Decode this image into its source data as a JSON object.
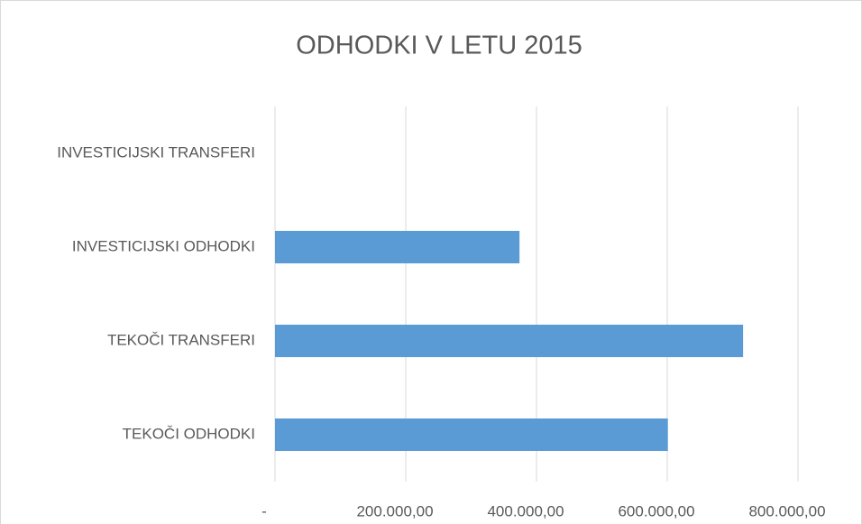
{
  "chart_data": {
    "type": "bar",
    "orientation": "horizontal",
    "title": "ODHODKI V LETU 2015",
    "categories": [
      "TEKOČI ODHODKI",
      "TEKOČI TRANSFERI",
      "INVESTICIJSKI ODHODKI",
      "INVESTICIJSKI TRANSFERI"
    ],
    "values": [
      601000,
      716000,
      374000,
      0
    ],
    "color": "#5b9bd5",
    "xlim": [
      0,
      800000
    ],
    "xticks": [
      {
        "value": 0,
        "label": "-"
      },
      {
        "value": 200000,
        "label": "200.000,00"
      },
      {
        "value": 400000,
        "label": "400.000,00"
      },
      {
        "value": 600000,
        "label": "600.000,00"
      },
      {
        "value": 800000,
        "label": "800.000,00"
      }
    ],
    "grid": true
  }
}
